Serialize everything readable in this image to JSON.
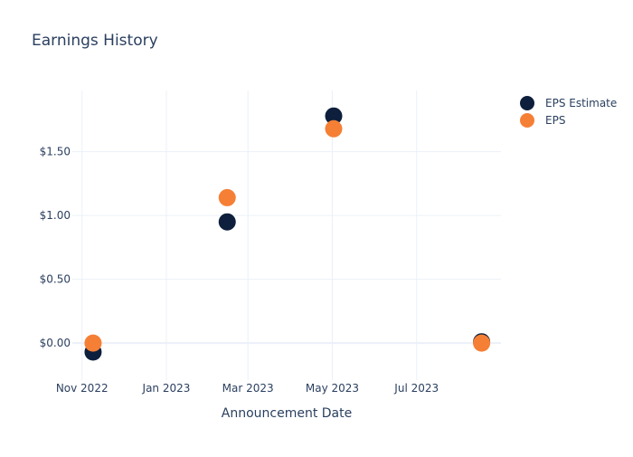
{
  "chart_data": {
    "type": "scatter",
    "title": "Earnings History",
    "xlabel": "Announcement Date",
    "ylabel": "",
    "x_ticks": [
      {
        "date": "2022-11-01",
        "label": "Nov 2022"
      },
      {
        "date": "2023-01-01",
        "label": "Jan 2023"
      },
      {
        "date": "2023-03-01",
        "label": "Mar 2023"
      },
      {
        "date": "2023-05-01",
        "label": "May 2023"
      },
      {
        "date": "2023-07-01",
        "label": "Jul 2023"
      }
    ],
    "y_ticks": [
      {
        "value": 0,
        "label": "$0.00"
      },
      {
        "value": 0.5,
        "label": "$0.50"
      },
      {
        "value": 1.0,
        "label": "$1.00"
      },
      {
        "value": 1.5,
        "label": "$1.50"
      }
    ],
    "xlim": [
      "2022-10-25",
      "2023-08-31"
    ],
    "ylim": [
      -0.29,
      1.98
    ],
    "grid": true,
    "legend_position": "top-right",
    "series": [
      {
        "name": "EPS Estimate",
        "color": "#0d1f3c",
        "points": [
          {
            "x": "2022-11-09",
            "y": -0.07
          },
          {
            "x": "2023-02-14",
            "y": 0.95
          },
          {
            "x": "2023-05-02",
            "y": 1.78
          },
          {
            "x": "2023-08-17",
            "y": 0.01
          }
        ]
      },
      {
        "name": "EPS",
        "color": "#f57f35",
        "points": [
          {
            "x": "2022-11-09",
            "y": 0.0
          },
          {
            "x": "2023-02-14",
            "y": 1.14
          },
          {
            "x": "2023-05-02",
            "y": 1.68
          },
          {
            "x": "2023-08-17",
            "y": 0.0
          }
        ]
      }
    ]
  }
}
